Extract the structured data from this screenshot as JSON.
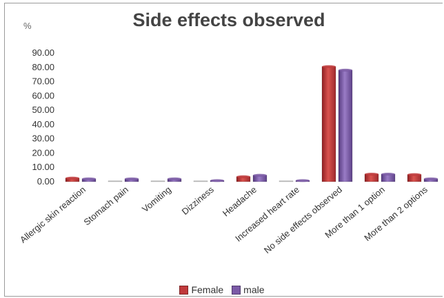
{
  "chart_data": {
    "type": "bar",
    "title": "Side effects observed",
    "ylabel": "%",
    "xlabel": "",
    "ylim": [
      0,
      90
    ],
    "yticks": [
      "0.00",
      "10.00",
      "20.00",
      "30.00",
      "40.00",
      "50.00",
      "60.00",
      "70.00",
      "80.00",
      "90.00"
    ],
    "categories": [
      "Allergic skin reaction",
      "Stomach pain",
      "Vomiting",
      "Dizziness",
      "Headache",
      "Increased heart rate",
      "No side effects observed",
      "More than 1 option",
      "More than 2 options"
    ],
    "series": [
      {
        "name": "Female",
        "color": "#c0393b",
        "values": [
          2.5,
          0,
          0,
          0,
          3.5,
          0,
          80.5,
          5.3,
          5.0
        ]
      },
      {
        "name": "male",
        "color": "#7b5aa6",
        "values": [
          2.0,
          2.0,
          2.0,
          0.8,
          4.5,
          0.8,
          78.0,
          5.3,
          2.0
        ]
      }
    ],
    "legend_position": "bottom",
    "grid": false
  }
}
